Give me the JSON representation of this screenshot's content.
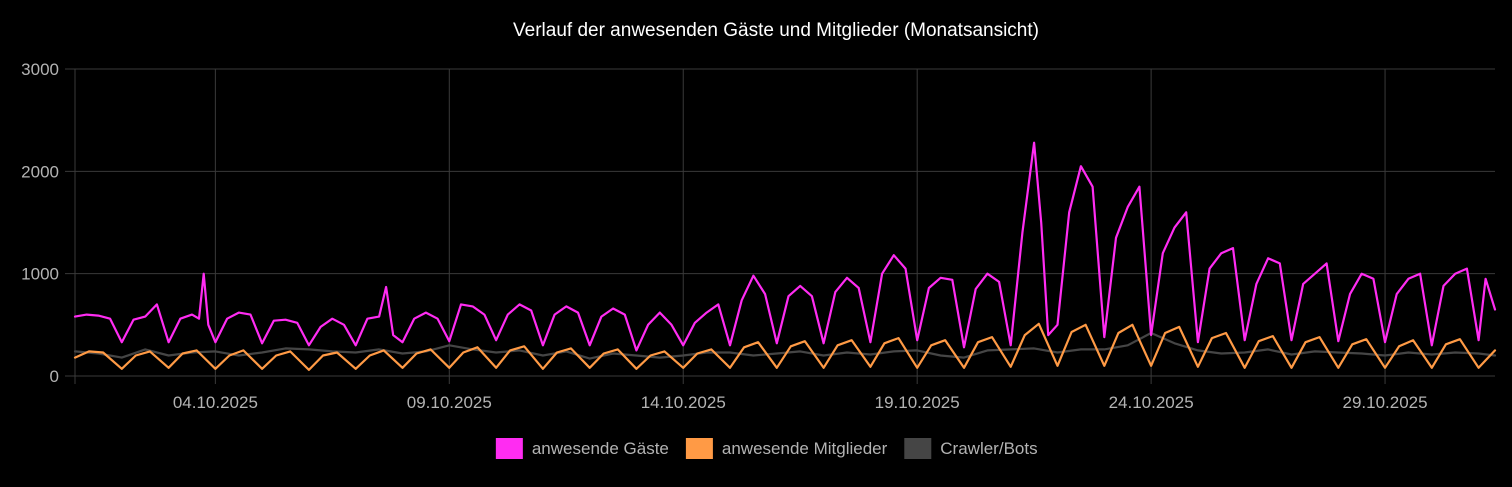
{
  "chart_data": {
    "type": "line",
    "title": "Verlauf der anwesenden Gäste und Mitglieder (Monatsansicht)",
    "xlabel": "",
    "ylabel": "",
    "ylim": [
      0,
      3000
    ],
    "yticks": [
      "0",
      "1000",
      "2000",
      "3000"
    ],
    "xlim": [
      0,
      30.35
    ],
    "x_unit": "days since 01.10.2025",
    "xticks": [
      {
        "x": 3,
        "label": "04.10.2025"
      },
      {
        "x": 8,
        "label": "09.10.2025"
      },
      {
        "x": 13,
        "label": "14.10.2025"
      },
      {
        "x": 18,
        "label": "19.10.2025"
      },
      {
        "x": 23,
        "label": "24.10.2025"
      },
      {
        "x": 28,
        "label": "29.10.2025"
      }
    ],
    "grid": true,
    "legend_position": "bottom",
    "series": [
      {
        "name": "anwesende Gäste",
        "color": "#ff2cf2",
        "fill": "#ff2cf2",
        "values": [
          [
            0.0,
            580
          ],
          [
            0.25,
            600
          ],
          [
            0.5,
            590
          ],
          [
            0.75,
            560
          ],
          [
            1.0,
            330
          ],
          [
            1.25,
            550
          ],
          [
            1.5,
            580
          ],
          [
            1.75,
            700
          ],
          [
            2.0,
            330
          ],
          [
            2.25,
            560
          ],
          [
            2.5,
            600
          ],
          [
            2.65,
            560
          ],
          [
            2.75,
            1000
          ],
          [
            2.85,
            500
          ],
          [
            3.0,
            330
          ],
          [
            3.25,
            560
          ],
          [
            3.5,
            620
          ],
          [
            3.75,
            600
          ],
          [
            4.0,
            320
          ],
          [
            4.25,
            540
          ],
          [
            4.5,
            550
          ],
          [
            4.75,
            520
          ],
          [
            5.0,
            300
          ],
          [
            5.25,
            480
          ],
          [
            5.5,
            560
          ],
          [
            5.75,
            500
          ],
          [
            6.0,
            300
          ],
          [
            6.25,
            560
          ],
          [
            6.5,
            580
          ],
          [
            6.65,
            870
          ],
          [
            6.8,
            400
          ],
          [
            7.0,
            330
          ],
          [
            7.25,
            560
          ],
          [
            7.5,
            620
          ],
          [
            7.75,
            560
          ],
          [
            8.0,
            340
          ],
          [
            8.25,
            700
          ],
          [
            8.5,
            680
          ],
          [
            8.75,
            600
          ],
          [
            9.0,
            350
          ],
          [
            9.25,
            600
          ],
          [
            9.5,
            700
          ],
          [
            9.75,
            640
          ],
          [
            10.0,
            300
          ],
          [
            10.25,
            600
          ],
          [
            10.5,
            680
          ],
          [
            10.75,
            620
          ],
          [
            11.0,
            300
          ],
          [
            11.25,
            580
          ],
          [
            11.5,
            660
          ],
          [
            11.75,
            600
          ],
          [
            12.0,
            250
          ],
          [
            12.25,
            500
          ],
          [
            12.5,
            620
          ],
          [
            12.75,
            500
          ],
          [
            13.0,
            300
          ],
          [
            13.25,
            520
          ],
          [
            13.5,
            620
          ],
          [
            13.75,
            700
          ],
          [
            14.0,
            300
          ],
          [
            14.25,
            740
          ],
          [
            14.5,
            980
          ],
          [
            14.75,
            800
          ],
          [
            15.0,
            320
          ],
          [
            15.25,
            780
          ],
          [
            15.5,
            880
          ],
          [
            15.75,
            780
          ],
          [
            16.0,
            320
          ],
          [
            16.25,
            820
          ],
          [
            16.5,
            960
          ],
          [
            16.75,
            860
          ],
          [
            17.0,
            330
          ],
          [
            17.25,
            1000
          ],
          [
            17.5,
            1180
          ],
          [
            17.75,
            1050
          ],
          [
            18.0,
            350
          ],
          [
            18.25,
            860
          ],
          [
            18.5,
            960
          ],
          [
            18.75,
            940
          ],
          [
            19.0,
            280
          ],
          [
            19.25,
            850
          ],
          [
            19.5,
            1000
          ],
          [
            19.75,
            920
          ],
          [
            20.0,
            300
          ],
          [
            20.25,
            1400
          ],
          [
            20.5,
            2280
          ],
          [
            20.65,
            1500
          ],
          [
            20.8,
            400
          ],
          [
            21.0,
            500
          ],
          [
            21.25,
            1600
          ],
          [
            21.5,
            2050
          ],
          [
            21.75,
            1850
          ],
          [
            22.0,
            380
          ],
          [
            22.25,
            1350
          ],
          [
            22.5,
            1650
          ],
          [
            22.75,
            1850
          ],
          [
            23.0,
            400
          ],
          [
            23.25,
            1200
          ],
          [
            23.5,
            1450
          ],
          [
            23.75,
            1600
          ],
          [
            24.0,
            330
          ],
          [
            24.25,
            1050
          ],
          [
            24.5,
            1200
          ],
          [
            24.75,
            1250
          ],
          [
            25.0,
            350
          ],
          [
            25.25,
            900
          ],
          [
            25.5,
            1150
          ],
          [
            25.75,
            1100
          ],
          [
            26.0,
            350
          ],
          [
            26.25,
            900
          ],
          [
            26.5,
            1000
          ],
          [
            26.75,
            1100
          ],
          [
            27.0,
            340
          ],
          [
            27.25,
            800
          ],
          [
            27.5,
            1000
          ],
          [
            27.75,
            950
          ],
          [
            28.0,
            330
          ],
          [
            28.25,
            800
          ],
          [
            28.5,
            950
          ],
          [
            28.75,
            1000
          ],
          [
            29.0,
            300
          ],
          [
            29.25,
            880
          ],
          [
            29.5,
            1000
          ],
          [
            29.75,
            1050
          ],
          [
            30.0,
            350
          ],
          [
            30.15,
            950
          ],
          [
            30.35,
            650
          ]
        ]
      },
      {
        "name": "anwesende Mitglieder",
        "color": "#ff9a45",
        "fill": "#ff9a45",
        "values": [
          [
            0.0,
            180
          ],
          [
            0.3,
            240
          ],
          [
            0.6,
            230
          ],
          [
            1.0,
            70
          ],
          [
            1.3,
            200
          ],
          [
            1.6,
            240
          ],
          [
            2.0,
            80
          ],
          [
            2.3,
            220
          ],
          [
            2.6,
            250
          ],
          [
            3.0,
            70
          ],
          [
            3.3,
            200
          ],
          [
            3.6,
            250
          ],
          [
            4.0,
            70
          ],
          [
            4.3,
            200
          ],
          [
            4.6,
            240
          ],
          [
            5.0,
            60
          ],
          [
            5.3,
            200
          ],
          [
            5.6,
            230
          ],
          [
            6.0,
            70
          ],
          [
            6.3,
            200
          ],
          [
            6.6,
            250
          ],
          [
            7.0,
            80
          ],
          [
            7.3,
            220
          ],
          [
            7.6,
            260
          ],
          [
            8.0,
            80
          ],
          [
            8.3,
            230
          ],
          [
            8.6,
            280
          ],
          [
            9.0,
            80
          ],
          [
            9.3,
            250
          ],
          [
            9.6,
            290
          ],
          [
            10.0,
            70
          ],
          [
            10.3,
            230
          ],
          [
            10.6,
            270
          ],
          [
            11.0,
            80
          ],
          [
            11.3,
            220
          ],
          [
            11.6,
            260
          ],
          [
            12.0,
            70
          ],
          [
            12.3,
            200
          ],
          [
            12.6,
            240
          ],
          [
            13.0,
            80
          ],
          [
            13.3,
            220
          ],
          [
            13.6,
            260
          ],
          [
            14.0,
            80
          ],
          [
            14.3,
            280
          ],
          [
            14.6,
            330
          ],
          [
            15.0,
            80
          ],
          [
            15.3,
            290
          ],
          [
            15.6,
            340
          ],
          [
            16.0,
            80
          ],
          [
            16.3,
            300
          ],
          [
            16.6,
            350
          ],
          [
            17.0,
            90
          ],
          [
            17.3,
            320
          ],
          [
            17.6,
            370
          ],
          [
            18.0,
            80
          ],
          [
            18.3,
            300
          ],
          [
            18.6,
            350
          ],
          [
            19.0,
            80
          ],
          [
            19.3,
            330
          ],
          [
            19.6,
            380
          ],
          [
            20.0,
            90
          ],
          [
            20.3,
            400
          ],
          [
            20.6,
            510
          ],
          [
            21.0,
            100
          ],
          [
            21.3,
            430
          ],
          [
            21.6,
            500
          ],
          [
            22.0,
            100
          ],
          [
            22.3,
            420
          ],
          [
            22.6,
            500
          ],
          [
            23.0,
            100
          ],
          [
            23.3,
            420
          ],
          [
            23.6,
            480
          ],
          [
            24.0,
            90
          ],
          [
            24.3,
            370
          ],
          [
            24.6,
            420
          ],
          [
            25.0,
            80
          ],
          [
            25.3,
            340
          ],
          [
            25.6,
            390
          ],
          [
            26.0,
            80
          ],
          [
            26.3,
            330
          ],
          [
            26.6,
            380
          ],
          [
            27.0,
            80
          ],
          [
            27.3,
            310
          ],
          [
            27.6,
            360
          ],
          [
            28.0,
            80
          ],
          [
            28.3,
            290
          ],
          [
            28.6,
            350
          ],
          [
            29.0,
            80
          ],
          [
            29.3,
            310
          ],
          [
            29.6,
            360
          ],
          [
            30.0,
            80
          ],
          [
            30.35,
            250
          ]
        ]
      },
      {
        "name": "Crawler/Bots",
        "color": "#454545",
        "fill": "#454545",
        "values": [
          [
            0.0,
            240
          ],
          [
            0.5,
            220
          ],
          [
            1.0,
            180
          ],
          [
            1.5,
            260
          ],
          [
            2.0,
            200
          ],
          [
            2.5,
            230
          ],
          [
            3.0,
            240
          ],
          [
            3.5,
            200
          ],
          [
            4.0,
            230
          ],
          [
            4.5,
            270
          ],
          [
            5.0,
            260
          ],
          [
            5.5,
            240
          ],
          [
            6.0,
            230
          ],
          [
            6.5,
            260
          ],
          [
            7.0,
            220
          ],
          [
            7.5,
            240
          ],
          [
            8.0,
            300
          ],
          [
            8.5,
            260
          ],
          [
            9.0,
            230
          ],
          [
            9.5,
            250
          ],
          [
            10.0,
            200
          ],
          [
            10.5,
            240
          ],
          [
            11.0,
            170
          ],
          [
            11.5,
            220
          ],
          [
            12.0,
            200
          ],
          [
            12.5,
            180
          ],
          [
            13.0,
            200
          ],
          [
            13.5,
            230
          ],
          [
            14.0,
            230
          ],
          [
            14.5,
            200
          ],
          [
            15.0,
            220
          ],
          [
            15.5,
            240
          ],
          [
            16.0,
            200
          ],
          [
            16.5,
            230
          ],
          [
            17.0,
            210
          ],
          [
            17.5,
            240
          ],
          [
            18.0,
            250
          ],
          [
            18.5,
            200
          ],
          [
            19.0,
            180
          ],
          [
            19.5,
            250
          ],
          [
            20.0,
            260
          ],
          [
            20.5,
            270
          ],
          [
            21.0,
            230
          ],
          [
            21.5,
            260
          ],
          [
            22.0,
            260
          ],
          [
            22.5,
            300
          ],
          [
            23.0,
            420
          ],
          [
            23.5,
            320
          ],
          [
            24.0,
            250
          ],
          [
            24.5,
            220
          ],
          [
            25.0,
            230
          ],
          [
            25.5,
            260
          ],
          [
            26.0,
            210
          ],
          [
            26.5,
            240
          ],
          [
            27.0,
            230
          ],
          [
            27.5,
            220
          ],
          [
            28.0,
            200
          ],
          [
            28.5,
            230
          ],
          [
            29.0,
            210
          ],
          [
            29.5,
            230
          ],
          [
            30.0,
            220
          ],
          [
            30.35,
            200
          ]
        ]
      }
    ]
  }
}
